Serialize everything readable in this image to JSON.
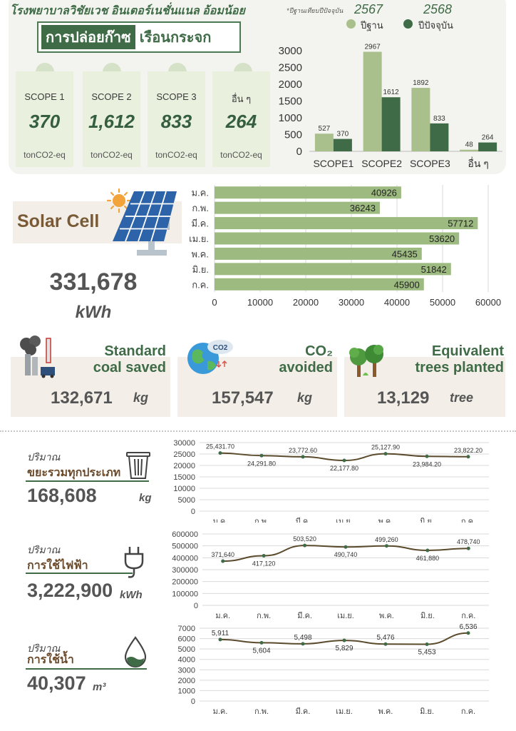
{
  "header": {
    "hospital_name": "โรงพยาบาลวิชัยเวช อินเตอร์เนชั่นแนล อ้อมน้อย",
    "title_part_a": "การปล่อยก๊าซ",
    "title_part_b": "เรือนกระจก"
  },
  "scopes": [
    {
      "label": "SCOPE 1",
      "value": "370",
      "unit": "tonCO2-eq"
    },
    {
      "label": "SCOPE 2",
      "value": "1,612",
      "unit": "tonCO2-eq"
    },
    {
      "label": "SCOPE 3",
      "value": "833",
      "unit": "tonCO2-eq"
    },
    {
      "label": "อื่น ๆ",
      "value": "264",
      "unit": "tonCO2-eq"
    }
  ],
  "legend": {
    "note": "*ปีฐานเทียบปีปัจจุบัน",
    "base_year": "2567",
    "current_year": "2568",
    "base_label": "ปีฐาน",
    "current_label": "ปีปัจจุบัน"
  },
  "solar": {
    "title": "Solar Cell",
    "total": "331,678",
    "unit": "kWh"
  },
  "impacts": [
    {
      "title_line1": "Standard",
      "title_line2": "coal saved",
      "value": "132,671",
      "unit": "kg"
    },
    {
      "title_line1": "CO₂",
      "title_line2": "avoided",
      "value": "157,547",
      "unit": "kg"
    },
    {
      "title_line1": "Equivalent",
      "title_line2": "trees planted",
      "value": "13,129",
      "unit": "tree"
    }
  ],
  "metrics": [
    {
      "caption": "ปริมาณ",
      "label": "ขยะรวมทุกประเภท",
      "value": "168,608",
      "unit": "kg"
    },
    {
      "caption": "ปริมาณ",
      "label": "การใช้ไฟฟ้า",
      "value": "3,222,900",
      "unit": "kWh"
    },
    {
      "caption": "ปริมาณ",
      "label": "การใช้น้ำ",
      "value": "40,307",
      "unit": "m³"
    }
  ],
  "colors": {
    "light_green": "#a9bf8c",
    "dark_green": "#3f6b47",
    "solar_bar": "#9dbb80",
    "line": "#5b4a2c",
    "grid": "#d9d9d9"
  },
  "chart_data": [
    {
      "type": "bar",
      "categories": [
        "SCOPE1",
        "SCOPE2",
        "SCOPE3",
        "อื่น ๆ"
      ],
      "series": [
        {
          "name": "ปีฐาน",
          "values": [
            527,
            2967,
            1892,
            48
          ]
        },
        {
          "name": "ปีปัจจุบัน",
          "values": [
            370,
            1612,
            833,
            264
          ]
        }
      ],
      "ylim": [
        0,
        3000
      ],
      "yticks": [
        0,
        500,
        1000,
        1500,
        2000,
        2500,
        3000
      ],
      "grid": false,
      "legend": "top"
    },
    {
      "type": "bar",
      "orientation": "horizontal",
      "categories": [
        "ม.ค.",
        "ก.พ.",
        "มี.ค.",
        "เม.ย.",
        "พ.ค.",
        "มิ.ย.",
        "ก.ค."
      ],
      "values": [
        40926,
        36243,
        57712,
        53620,
        45435,
        51842,
        45900
      ],
      "xlim": [
        0,
        60000
      ],
      "xticks": [
        0,
        10000,
        20000,
        30000,
        40000,
        50000,
        60000
      ],
      "grid": true
    },
    {
      "type": "line",
      "categories": [
        "ม.ค.",
        "ก.พ.",
        "มี.ค.",
        "เม.ย.",
        "พ.ค.",
        "มิ.ย.",
        "ก.ค."
      ],
      "values": [
        25431.7,
        24291.8,
        23772.6,
        22177.8,
        25127.9,
        23984.2,
        23822.2
      ],
      "labels": [
        "25,431.70",
        "24,291.80",
        "23,772.60",
        "22,177.80",
        "25,127.90",
        "23,984.20",
        "23,822.20"
      ],
      "ylim": [
        0,
        30000
      ],
      "yticks": [
        0,
        5000,
        10000,
        15000,
        20000,
        25000,
        30000
      ],
      "grid": true
    },
    {
      "type": "line",
      "categories": [
        "ม.ค.",
        "ก.พ.",
        "มี.ค.",
        "เม.ย.",
        "พ.ค.",
        "มิ.ย.",
        "ก.ค."
      ],
      "values": [
        371640,
        417120,
        503520,
        490740,
        499260,
        461880,
        478740
      ],
      "labels": [
        "371,640",
        "417,120",
        "503,520",
        "490,740",
        "499,260",
        "461,880",
        "478,740"
      ],
      "ylim": [
        0,
        600000
      ],
      "yticks": [
        0,
        100000,
        200000,
        300000,
        400000,
        500000,
        600000
      ],
      "grid": true
    },
    {
      "type": "line",
      "categories": [
        "ม.ค.",
        "ก.พ.",
        "มี.ค.",
        "เม.ย.",
        "พ.ค.",
        "มิ.ย.",
        "ก.ค."
      ],
      "values": [
        5911,
        5604,
        5498,
        5829,
        5476,
        5453,
        6536
      ],
      "labels": [
        "5,911",
        "5,604",
        "5,498",
        "5,829",
        "5,476",
        "5,453",
        "6,536"
      ],
      "ylim": [
        0,
        7000
      ],
      "yticks": [
        0,
        1000,
        2000,
        3000,
        4000,
        5000,
        6000,
        7000
      ],
      "grid": true
    }
  ]
}
